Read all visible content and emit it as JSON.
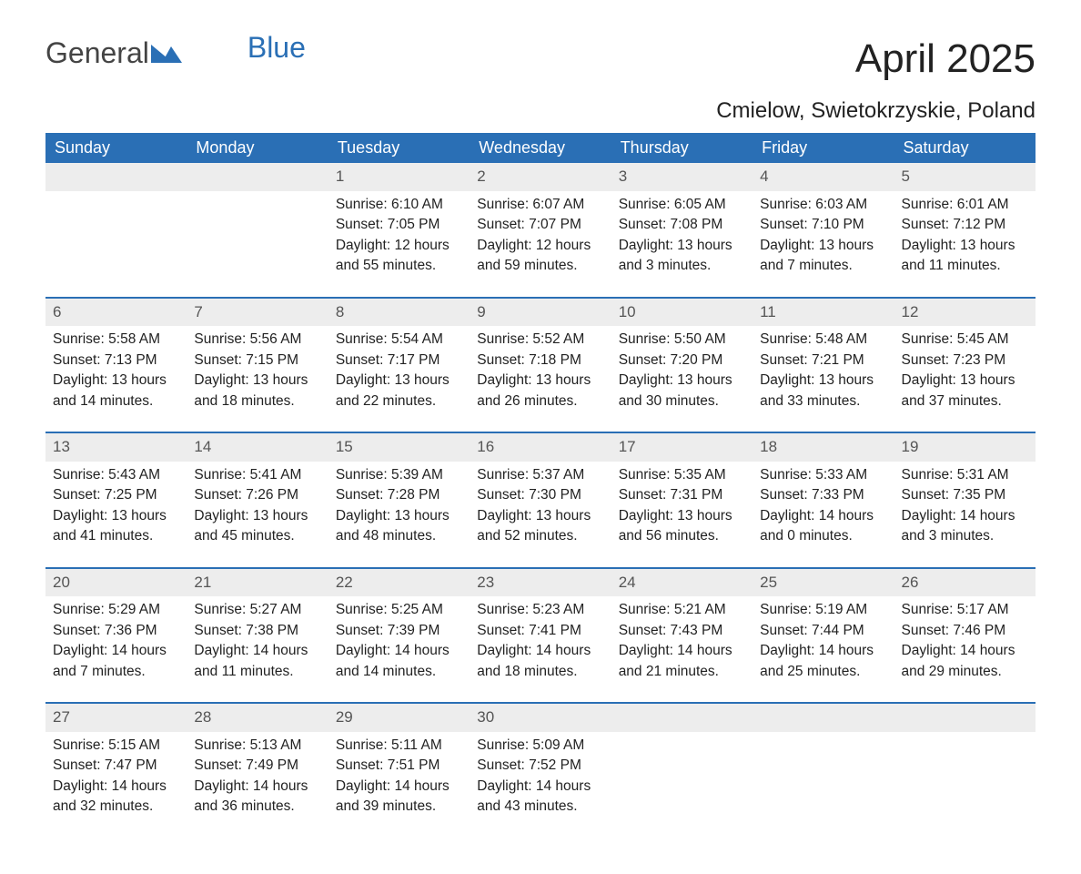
{
  "brand": {
    "general": "General",
    "blue": "Blue"
  },
  "title": "April 2025",
  "location": "Cmielow, Swietokrzyskie, Poland",
  "colors": {
    "header_bg": "#2a6fb5",
    "header_text": "#ffffff",
    "daynum_bg": "#ededed",
    "row_divider": "#2a6fb5",
    "body_text": "#222222",
    "page_bg": "#ffffff",
    "logo_accent": "#2a6fb5"
  },
  "typography": {
    "title_fontsize": 44,
    "location_fontsize": 24,
    "dayhead_fontsize": 18,
    "cell_fontsize": 15.5
  },
  "day_headers": [
    "Sunday",
    "Monday",
    "Tuesday",
    "Wednesday",
    "Thursday",
    "Friday",
    "Saturday"
  ],
  "weeks": [
    [
      null,
      null,
      {
        "n": "1",
        "sr": "6:10 AM",
        "ss": "7:05 PM",
        "dl1": "12 hours",
        "dl2": "and 55 minutes."
      },
      {
        "n": "2",
        "sr": "6:07 AM",
        "ss": "7:07 PM",
        "dl1": "12 hours",
        "dl2": "and 59 minutes."
      },
      {
        "n": "3",
        "sr": "6:05 AM",
        "ss": "7:08 PM",
        "dl1": "13 hours",
        "dl2": "and 3 minutes."
      },
      {
        "n": "4",
        "sr": "6:03 AM",
        "ss": "7:10 PM",
        "dl1": "13 hours",
        "dl2": "and 7 minutes."
      },
      {
        "n": "5",
        "sr": "6:01 AM",
        "ss": "7:12 PM",
        "dl1": "13 hours",
        "dl2": "and 11 minutes."
      }
    ],
    [
      {
        "n": "6",
        "sr": "5:58 AM",
        "ss": "7:13 PM",
        "dl1": "13 hours",
        "dl2": "and 14 minutes."
      },
      {
        "n": "7",
        "sr": "5:56 AM",
        "ss": "7:15 PM",
        "dl1": "13 hours",
        "dl2": "and 18 minutes."
      },
      {
        "n": "8",
        "sr": "5:54 AM",
        "ss": "7:17 PM",
        "dl1": "13 hours",
        "dl2": "and 22 minutes."
      },
      {
        "n": "9",
        "sr": "5:52 AM",
        "ss": "7:18 PM",
        "dl1": "13 hours",
        "dl2": "and 26 minutes."
      },
      {
        "n": "10",
        "sr": "5:50 AM",
        "ss": "7:20 PM",
        "dl1": "13 hours",
        "dl2": "and 30 minutes."
      },
      {
        "n": "11",
        "sr": "5:48 AM",
        "ss": "7:21 PM",
        "dl1": "13 hours",
        "dl2": "and 33 minutes."
      },
      {
        "n": "12",
        "sr": "5:45 AM",
        "ss": "7:23 PM",
        "dl1": "13 hours",
        "dl2": "and 37 minutes."
      }
    ],
    [
      {
        "n": "13",
        "sr": "5:43 AM",
        "ss": "7:25 PM",
        "dl1": "13 hours",
        "dl2": "and 41 minutes."
      },
      {
        "n": "14",
        "sr": "5:41 AM",
        "ss": "7:26 PM",
        "dl1": "13 hours",
        "dl2": "and 45 minutes."
      },
      {
        "n": "15",
        "sr": "5:39 AM",
        "ss": "7:28 PM",
        "dl1": "13 hours",
        "dl2": "and 48 minutes."
      },
      {
        "n": "16",
        "sr": "5:37 AM",
        "ss": "7:30 PM",
        "dl1": "13 hours",
        "dl2": "and 52 minutes."
      },
      {
        "n": "17",
        "sr": "5:35 AM",
        "ss": "7:31 PM",
        "dl1": "13 hours",
        "dl2": "and 56 minutes."
      },
      {
        "n": "18",
        "sr": "5:33 AM",
        "ss": "7:33 PM",
        "dl1": "14 hours",
        "dl2": "and 0 minutes."
      },
      {
        "n": "19",
        "sr": "5:31 AM",
        "ss": "7:35 PM",
        "dl1": "14 hours",
        "dl2": "and 3 minutes."
      }
    ],
    [
      {
        "n": "20",
        "sr": "5:29 AM",
        "ss": "7:36 PM",
        "dl1": "14 hours",
        "dl2": "and 7 minutes."
      },
      {
        "n": "21",
        "sr": "5:27 AM",
        "ss": "7:38 PM",
        "dl1": "14 hours",
        "dl2": "and 11 minutes."
      },
      {
        "n": "22",
        "sr": "5:25 AM",
        "ss": "7:39 PM",
        "dl1": "14 hours",
        "dl2": "and 14 minutes."
      },
      {
        "n": "23",
        "sr": "5:23 AM",
        "ss": "7:41 PM",
        "dl1": "14 hours",
        "dl2": "and 18 minutes."
      },
      {
        "n": "24",
        "sr": "5:21 AM",
        "ss": "7:43 PM",
        "dl1": "14 hours",
        "dl2": "and 21 minutes."
      },
      {
        "n": "25",
        "sr": "5:19 AM",
        "ss": "7:44 PM",
        "dl1": "14 hours",
        "dl2": "and 25 minutes."
      },
      {
        "n": "26",
        "sr": "5:17 AM",
        "ss": "7:46 PM",
        "dl1": "14 hours",
        "dl2": "and 29 minutes."
      }
    ],
    [
      {
        "n": "27",
        "sr": "5:15 AM",
        "ss": "7:47 PM",
        "dl1": "14 hours",
        "dl2": "and 32 minutes."
      },
      {
        "n": "28",
        "sr": "5:13 AM",
        "ss": "7:49 PM",
        "dl1": "14 hours",
        "dl2": "and 36 minutes."
      },
      {
        "n": "29",
        "sr": "5:11 AM",
        "ss": "7:51 PM",
        "dl1": "14 hours",
        "dl2": "and 39 minutes."
      },
      {
        "n": "30",
        "sr": "5:09 AM",
        "ss": "7:52 PM",
        "dl1": "14 hours",
        "dl2": "and 43 minutes."
      },
      null,
      null,
      null
    ]
  ],
  "labels": {
    "sunrise": "Sunrise:",
    "sunset": "Sunset:",
    "daylight": "Daylight:"
  }
}
